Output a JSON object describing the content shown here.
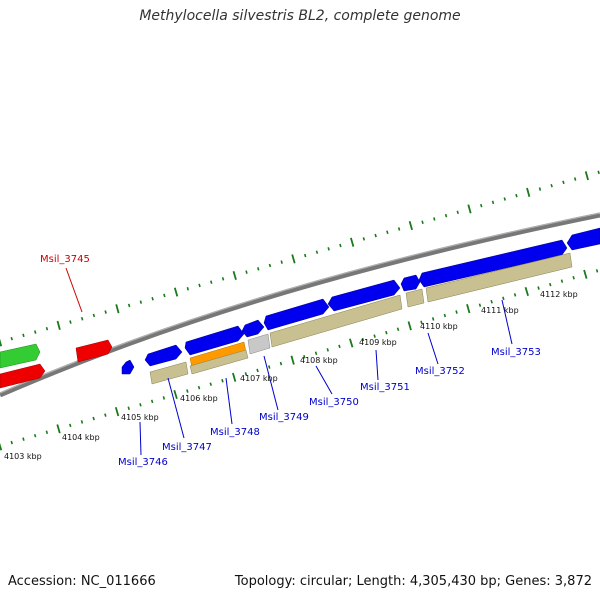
{
  "title": "Methylocella silvestris BL2, complete genome",
  "accession": "Accession: NC_011666",
  "summary": "Topology: circular; Length: 4,305,430 bp; Genes: 3,872",
  "colors": {
    "background": "#ffffff",
    "backbone": "#888888",
    "tick": "#1a7a1a",
    "gene_blue": "#0000ee",
    "gene_red": "#ee0000",
    "gene_green": "#33cc33",
    "gene_orange": "#ff9900",
    "gene_khaki": "#c8c090",
    "gene_gray": "#c0c0c0",
    "label_blue": "#0000cc",
    "label_red": "#cc0000"
  },
  "scale_labels": [
    "4103 kbp",
    "4104 kbp",
    "4105 kbp",
    "4106 kbp",
    "4107 kbp",
    "4108 kbp",
    "4109 kbp",
    "4110 kbp",
    "4111 kbp",
    "4112 kbp"
  ],
  "gene_labels": [
    {
      "name": "Msil_3745",
      "color": "red"
    },
    {
      "name": "Msil_3746",
      "color": "blue"
    },
    {
      "name": "Msil_3747",
      "color": "blue"
    },
    {
      "name": "Msil_3748",
      "color": "blue"
    },
    {
      "name": "Msil_3749",
      "color": "blue"
    },
    {
      "name": "Msil_3750",
      "color": "blue"
    },
    {
      "name": "Msil_3751",
      "color": "blue"
    },
    {
      "name": "Msil_3752",
      "color": "blue"
    },
    {
      "name": "Msil_3753",
      "color": "blue"
    }
  ]
}
